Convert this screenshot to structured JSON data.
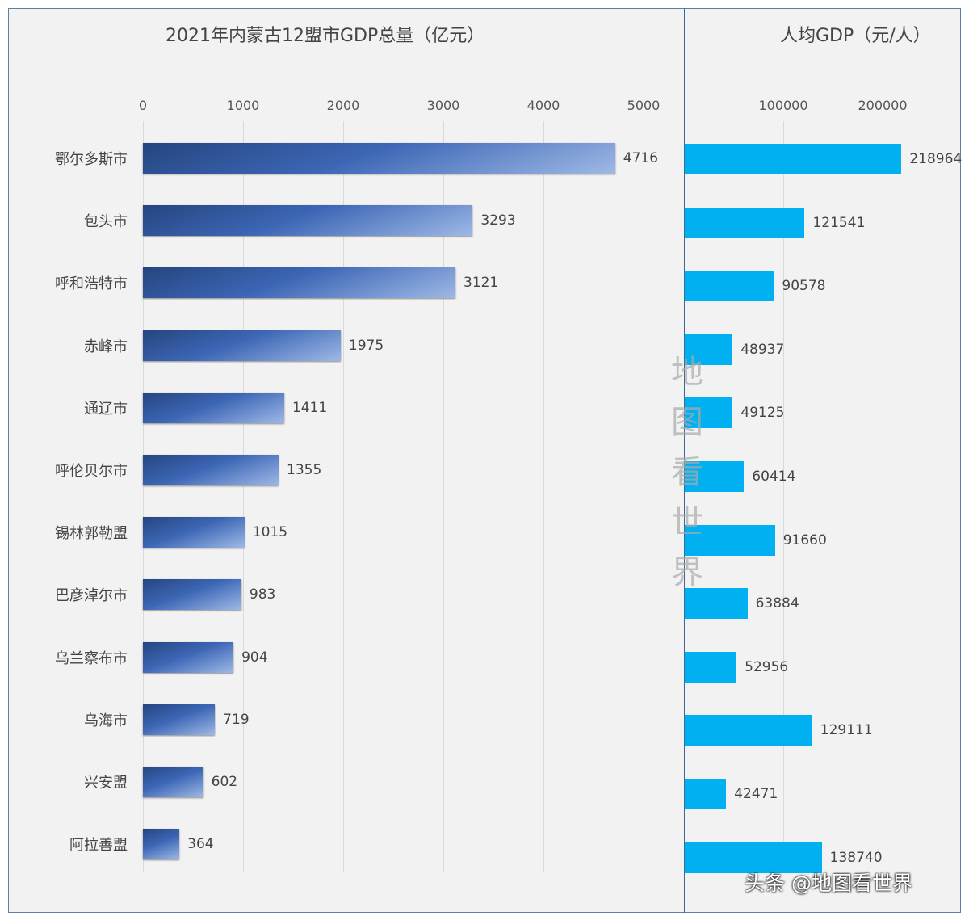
{
  "chart_data": [
    {
      "type": "bar",
      "orientation": "horizontal",
      "title": "2021年内蒙古12盟市GDP总量（亿元）",
      "xlim": [
        0,
        5000
      ],
      "ticks": [
        "0",
        "1000",
        "2000",
        "3000",
        "4000",
        "5000"
      ],
      "grid": true,
      "bar_color": "#3c66b5",
      "categories": [
        "鄂尔多斯市",
        "包头市",
        "呼和浩特市",
        "赤峰市",
        "通辽市",
        "呼伦贝尔市",
        "锡林郭勒盟",
        "巴彦淖尔市",
        "乌兰察布市",
        "乌海市",
        "兴安盟",
        "阿拉善盟"
      ],
      "values": [
        4716,
        3293,
        3121,
        1975,
        1411,
        1355,
        1015,
        983,
        904,
        719,
        602,
        364
      ]
    },
    {
      "type": "bar",
      "orientation": "horizontal",
      "title": "人均GDP（元/人）",
      "xlim": [
        0,
        260000
      ],
      "ticks": [
        "100000",
        "200000"
      ],
      "grid": true,
      "bar_color": "#00b0f0",
      "categories": [
        "鄂尔多斯市",
        "包头市",
        "呼和浩特市",
        "赤峰市",
        "通辽市",
        "呼伦贝尔市",
        "锡林郭勒盟",
        "巴彦淖尔市",
        "乌兰察布市",
        "乌海市",
        "兴安盟",
        "阿拉善盟"
      ],
      "values": [
        218964,
        121541,
        90578,
        48937,
        49125,
        60414,
        91660,
        63884,
        52956,
        129111,
        42471,
        138740
      ]
    }
  ],
  "watermark": "地图看世界",
  "credit": "头条 @地图看世界"
}
